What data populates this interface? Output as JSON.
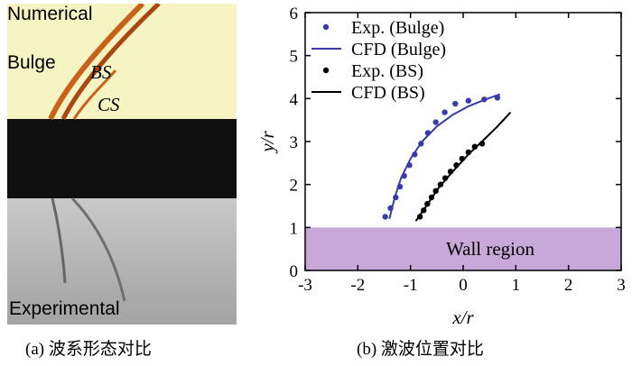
{
  "panel_a": {
    "labels": {
      "numerical": "Numerical",
      "bulge": "Bulge",
      "bs": "BS",
      "cs": "CS",
      "experimental": "Experimental"
    },
    "colors": {
      "numerical_bg": "#f7f4c4",
      "shock_orange": "#c8621a",
      "wall": "#0f0f0f",
      "experimental_bg": "#b8b8b8"
    }
  },
  "captions": {
    "a": "(a) 波系形态对比",
    "b": "(b) 激波位置对比"
  },
  "chart_data": {
    "type": "scatter",
    "xlabel": "x/r",
    "ylabel": "y/r",
    "xlim": [
      -3,
      3
    ],
    "ylim": [
      0,
      6
    ],
    "xticks": [
      "-3",
      "-2",
      "-1",
      "0",
      "1",
      "2",
      "3"
    ],
    "yticks": [
      "0",
      "1",
      "2",
      "3",
      "4",
      "5",
      "6"
    ],
    "region": {
      "label": "Wall region",
      "y_range": [
        0,
        1
      ],
      "color": "#c7a8d9"
    },
    "legend_position": "top-left",
    "series": [
      {
        "name": "Exp. (Bulge)",
        "kind": "points",
        "color": "#3a3aa8",
        "points": [
          [
            -1.48,
            1.25
          ],
          [
            -1.38,
            1.45
          ],
          [
            -1.28,
            1.7
          ],
          [
            -1.2,
            1.95
          ],
          [
            -1.12,
            2.2
          ],
          [
            -1.02,
            2.45
          ],
          [
            -0.92,
            2.7
          ],
          [
            -0.8,
            2.95
          ],
          [
            -0.67,
            3.2
          ],
          [
            -0.52,
            3.45
          ],
          [
            -0.35,
            3.68
          ],
          [
            -0.15,
            3.88
          ],
          [
            0.1,
            3.95
          ],
          [
            0.4,
            3.98
          ],
          [
            0.65,
            4.02
          ]
        ]
      },
      {
        "name": "CFD (Bulge)",
        "kind": "line",
        "color": "#3a3aa8",
        "points": [
          [
            -1.4,
            1.2
          ],
          [
            -1.3,
            1.7
          ],
          [
            -1.18,
            2.15
          ],
          [
            -1.0,
            2.6
          ],
          [
            -0.78,
            3.0
          ],
          [
            -0.5,
            3.35
          ],
          [
            -0.2,
            3.62
          ],
          [
            0.1,
            3.82
          ],
          [
            0.4,
            3.97
          ],
          [
            0.7,
            4.1
          ]
        ]
      },
      {
        "name": "Exp. (BS)",
        "kind": "points",
        "color": "#000000",
        "points": [
          [
            -0.82,
            1.25
          ],
          [
            -0.75,
            1.4
          ],
          [
            -0.68,
            1.55
          ],
          [
            -0.6,
            1.7
          ],
          [
            -0.52,
            1.85
          ],
          [
            -0.43,
            2.0
          ],
          [
            -0.34,
            2.15
          ],
          [
            -0.24,
            2.3
          ],
          [
            -0.13,
            2.45
          ],
          [
            -0.02,
            2.6
          ],
          [
            0.1,
            2.75
          ],
          [
            0.22,
            2.88
          ],
          [
            0.36,
            2.95
          ]
        ]
      },
      {
        "name": "CFD (BS)",
        "kind": "line",
        "color": "#000000",
        "points": [
          [
            -0.9,
            1.15
          ],
          [
            -0.7,
            1.5
          ],
          [
            -0.48,
            1.9
          ],
          [
            -0.2,
            2.3
          ],
          [
            0.1,
            2.7
          ],
          [
            0.4,
            3.05
          ],
          [
            0.65,
            3.35
          ],
          [
            0.9,
            3.68
          ]
        ]
      }
    ]
  }
}
